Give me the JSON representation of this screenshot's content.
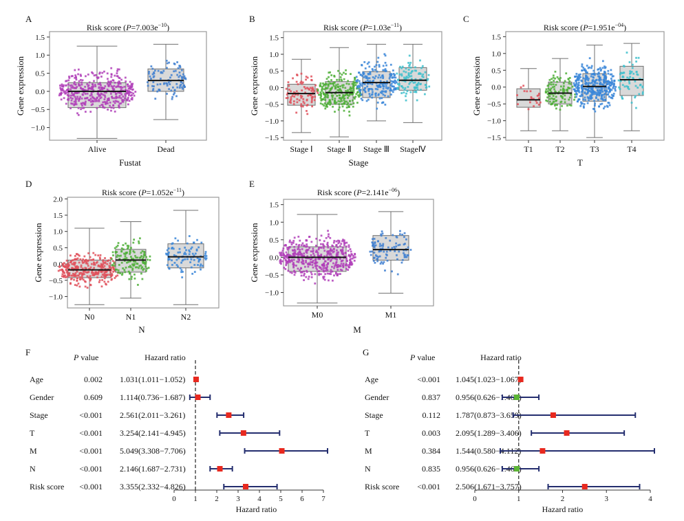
{
  "colors": {
    "box_fill": "#d9d9d9",
    "box_stroke": "#6f6f6f",
    "panel_border": "#9a9a9a",
    "alive": "#b040b8",
    "dead": "#3f7fd0",
    "stage1": "#e0505a",
    "stage2": "#4faf38",
    "stage3": "#3a86d8",
    "stage4": "#3ec0cc",
    "m1": "#3f7fd0",
    "forest_line": "#232d6e",
    "forest_point_red": "#e8291f",
    "forest_point_green": "#5cb535",
    "ref_line": "#333333"
  },
  "chart_data": [
    {
      "panel": "A",
      "type": "box",
      "title": "Risk score",
      "p_text": "P",
      "p_value": "=7.003e",
      "p_exp": "−10",
      "xlabel": "Fustat",
      "ylabel": "Gene expression",
      "ylim": [
        -1.35,
        1.65
      ],
      "yticks": [
        -1.0,
        -0.5,
        0.0,
        0.5,
        1.0,
        1.5
      ],
      "groups": [
        {
          "name": "Alive",
          "color_key": "alive",
          "n": 430,
          "q1": -0.45,
          "median": 0.0,
          "q3": 0.24,
          "wlo": -1.3,
          "whi": 1.25,
          "min": -1.3,
          "max": 1.55
        },
        {
          "name": "Dead",
          "color_key": "dead",
          "n": 95,
          "q1": 0.0,
          "median": 0.3,
          "q3": 0.62,
          "wlo": -0.78,
          "whi": 1.3,
          "min": -0.78,
          "max": 1.3
        }
      ]
    },
    {
      "panel": "B",
      "type": "box",
      "title": "Risk score",
      "p_text": "P",
      "p_value": "=1.03e",
      "p_exp": "−11",
      "xlabel": "Stage",
      "ylabel": "Gene expression",
      "ylim": [
        -1.58,
        1.68
      ],
      "yticks": [
        -1.5,
        -1.0,
        -0.5,
        0.0,
        0.5,
        1.0,
        1.5
      ],
      "groups": [
        {
          "name": "Stage Ⅰ",
          "color_key": "stage1",
          "n": 95,
          "q1": -0.53,
          "median": -0.18,
          "q3": 0.1,
          "wlo": -1.35,
          "whi": 0.85,
          "min": -1.35,
          "max": 0.85
        },
        {
          "name": "Stage Ⅱ",
          "color_key": "stage2",
          "n": 250,
          "q1": -0.5,
          "median": -0.15,
          "q3": 0.18,
          "wlo": -1.48,
          "whi": 1.2,
          "min": -1.48,
          "max": 1.55
        },
        {
          "name": "Stage Ⅲ",
          "color_key": "stage3",
          "n": 210,
          "q1": -0.3,
          "median": 0.15,
          "q3": 0.48,
          "wlo": -1.0,
          "whi": 1.3,
          "min": -1.58,
          "max": 1.65
        },
        {
          "name": "StageⅣ",
          "color_key": "stage4",
          "n": 110,
          "q1": -0.08,
          "median": 0.22,
          "q3": 0.6,
          "wlo": -1.05,
          "whi": 1.3,
          "min": -1.05,
          "max": 1.3
        }
      ]
    },
    {
      "panel": "C",
      "type": "box",
      "title": "Risk score",
      "p_text": "P",
      "p_value": "=1.951e",
      "p_exp": "−04",
      "xlabel": "T",
      "ylabel": "Gene expression",
      "ylim": [
        -1.58,
        1.65
      ],
      "yticks": [
        -1.5,
        -1.0,
        -0.5,
        0.0,
        0.5,
        1.0,
        1.5
      ],
      "groups": [
        {
          "name": "T1",
          "color_key": "stage1",
          "n": 22,
          "q1": -0.6,
          "median": -0.38,
          "q3": -0.05,
          "wlo": -1.3,
          "whi": 0.55,
          "min": -1.3,
          "max": 0.55
        },
        {
          "name": "T2",
          "color_key": "stage2",
          "n": 115,
          "q1": -0.5,
          "median": -0.18,
          "q3": 0.15,
          "wlo": -1.3,
          "whi": 0.85,
          "min": -1.3,
          "max": 1.35
        },
        {
          "name": "T3",
          "color_key": "stage3",
          "n": 380,
          "q1": -0.42,
          "median": 0.02,
          "q3": 0.4,
          "wlo": -1.5,
          "whi": 1.25,
          "min": -1.5,
          "max": 1.6
        },
        {
          "name": "T4",
          "color_key": "stage4",
          "n": 65,
          "q1": -0.25,
          "median": 0.22,
          "q3": 0.62,
          "wlo": -1.3,
          "whi": 1.3,
          "min": -1.3,
          "max": 1.3
        }
      ]
    },
    {
      "panel": "D",
      "type": "box",
      "title": "Risk score",
      "p_text": "P",
      "p_value": "=1.052e",
      "p_exp": "−11",
      "xlabel": "N",
      "ylabel": "Gene expression",
      "ylim": [
        -1.35,
        2.05
      ],
      "yticks": [
        -1.0,
        -0.5,
        0.0,
        0.5,
        1.0,
        1.5,
        2.0
      ],
      "groups": [
        {
          "name": "N0",
          "color_key": "stage1",
          "n": 330,
          "q1": -0.42,
          "median": -0.18,
          "q3": 0.12,
          "wlo": -1.25,
          "whi": 1.1,
          "min": -1.3,
          "max": 1.6
        },
        {
          "name": "N1",
          "color_key": "stage2",
          "n": 140,
          "q1": -0.25,
          "median": 0.12,
          "q3": 0.45,
          "wlo": -1.05,
          "whi": 1.3,
          "min": -1.05,
          "max": 1.9
        },
        {
          "name": "N2",
          "color_key": "stage3",
          "n": 95,
          "q1": -0.12,
          "median": 0.22,
          "q3": 0.62,
          "wlo": -1.25,
          "whi": 1.65,
          "min": -1.25,
          "max": 1.65
        }
      ]
    },
    {
      "panel": "E",
      "type": "box",
      "title": "Risk score",
      "p_text": "P",
      "p_value": "=2.141e",
      "p_exp": "−06",
      "xlabel": "M",
      "ylabel": "Gene expression",
      "ylim": [
        -1.38,
        1.65
      ],
      "yticks": [
        -1.0,
        -0.5,
        0.0,
        0.5,
        1.0,
        1.5
      ],
      "groups": [
        {
          "name": "M0",
          "color_key": "alive",
          "n": 480,
          "q1": -0.4,
          "median": 0.0,
          "q3": 0.3,
          "wlo": -1.3,
          "whi": 1.22,
          "min": -1.3,
          "max": 1.6
        },
        {
          "name": "M1",
          "color_key": "m1",
          "n": 100,
          "q1": -0.08,
          "median": 0.22,
          "q3": 0.62,
          "wlo": -1.02,
          "whi": 1.3,
          "min": -1.35,
          "max": 1.3
        }
      ]
    },
    {
      "panel": "F",
      "type": "forest",
      "col_p": "P",
      "col_p_suffix": " value",
      "col_hr": "Hazard ratio",
      "xlabel": "Hazard ratio",
      "xlim": [
        0,
        7
      ],
      "xticks": [
        0,
        1,
        2,
        3,
        4,
        5,
        6,
        7
      ],
      "ref": 1,
      "rows": [
        {
          "label": "Age",
          "p": "0.002",
          "hr_text": "1.031(1.011−1.052)",
          "hr": 1.031,
          "lo": 1.011,
          "hi": 1.052,
          "color": "red"
        },
        {
          "label": "Gender",
          "p": "0.609",
          "hr_text": "1.114(0.736−1.687)",
          "hr": 1.114,
          "lo": 0.736,
          "hi": 1.687,
          "color": "red"
        },
        {
          "label": "Stage",
          "p": "<0.001",
          "hr_text": "2.561(2.011−3.261)",
          "hr": 2.561,
          "lo": 2.011,
          "hi": 3.261,
          "color": "red"
        },
        {
          "label": "T",
          "p": "<0.001",
          "hr_text": "3.254(2.141−4.945)",
          "hr": 3.254,
          "lo": 2.141,
          "hi": 4.945,
          "color": "red"
        },
        {
          "label": "M",
          "p": "<0.001",
          "hr_text": "5.049(3.308−7.706)",
          "hr": 5.049,
          "lo": 3.308,
          "hi": 7.706,
          "color": "red"
        },
        {
          "label": "N",
          "p": "<0.001",
          "hr_text": "2.146(1.687−2.731)",
          "hr": 2.146,
          "lo": 1.687,
          "hi": 2.731,
          "color": "red"
        },
        {
          "label": "Risk score",
          "p": "<0.001",
          "hr_text": "3.355(2.332−4.826)",
          "hr": 3.355,
          "lo": 2.332,
          "hi": 4.826,
          "color": "red"
        }
      ]
    },
    {
      "panel": "G",
      "type": "forest",
      "col_p": "P",
      "col_p_suffix": " value",
      "col_hr": "Hazard ratio",
      "xlabel": "Hazard ratio",
      "xlim": [
        0,
        4
      ],
      "xticks": [
        0,
        1,
        2,
        3,
        4
      ],
      "ref": 1,
      "rows": [
        {
          "label": "Age",
          "p": "<0.001",
          "hr_text": "1.045(1.023−1.067)",
          "hr": 1.045,
          "lo": 1.023,
          "hi": 1.067,
          "color": "red"
        },
        {
          "label": "Gender",
          "p": "0.837",
          "hr_text": "0.956(0.626−1.460)",
          "hr": 0.956,
          "lo": 0.626,
          "hi": 1.46,
          "color": "green"
        },
        {
          "label": "Stage",
          "p": "0.112",
          "hr_text": "1.787(0.873−3.659)",
          "hr": 1.787,
          "lo": 0.873,
          "hi": 3.659,
          "color": "red"
        },
        {
          "label": "T",
          "p": "0.003",
          "hr_text": "2.095(1.289−3.406)",
          "hr": 2.095,
          "lo": 1.289,
          "hi": 3.406,
          "color": "red"
        },
        {
          "label": "M",
          "p": "0.384",
          "hr_text": "1.544(0.580−4.112)",
          "hr": 1.544,
          "lo": 0.58,
          "hi": 4.112,
          "color": "red"
        },
        {
          "label": "N",
          "p": "0.835",
          "hr_text": "0.956(0.626−1.461)",
          "hr": 0.956,
          "lo": 0.626,
          "hi": 1.461,
          "color": "green"
        },
        {
          "label": "Risk score",
          "p": "<0.001",
          "hr_text": "2.506(1.671−3.757)",
          "hr": 2.506,
          "lo": 1.671,
          "hi": 3.757,
          "color": "red"
        }
      ]
    }
  ]
}
